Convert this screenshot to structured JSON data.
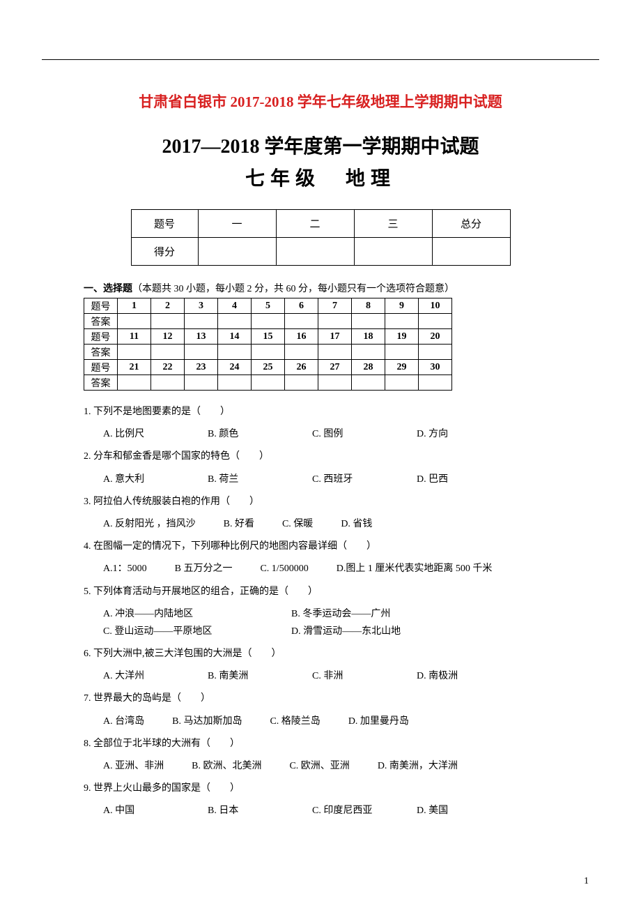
{
  "colors": {
    "title_red": "#d82020",
    "text": "#000000",
    "background": "#ffffff",
    "border": "#000000"
  },
  "title_red": "甘肃省白银市 2017-2018 学年七年级地理上学期期中试题",
  "title_main": "2017—2018 学年度第一学期期中试题",
  "subtitle": "七年级　地理",
  "score_table": {
    "row_labels": [
      "题号",
      "得分"
    ],
    "columns": [
      "一",
      "二",
      "三",
      "总分"
    ]
  },
  "section1_header_bold": "一、选择题",
  "section1_header_rest": "（本题共 30 小题，每小题 2 分，共 60 分，每小题只有一个选项符合题意）",
  "answer_grid": {
    "row_label_q": "题号",
    "row_label_a": "答案",
    "rows": [
      [
        "1",
        "2",
        "3",
        "4",
        "5",
        "6",
        "7",
        "8",
        "9",
        "10"
      ],
      [
        "11",
        "12",
        "13",
        "14",
        "15",
        "16",
        "17",
        "18",
        "19",
        "20"
      ],
      [
        "21",
        "22",
        "23",
        "24",
        "25",
        "26",
        "27",
        "28",
        "29",
        "30"
      ]
    ]
  },
  "questions": [
    {
      "num": "1.",
      "text": "下列不是地图要素的是（　　）",
      "opts": [
        "A. 比例尺",
        "B. 颜色",
        "C. 图例",
        "D. 方向"
      ],
      "layout": "opt4"
    },
    {
      "num": "2.",
      "text": "分车和郁金香是哪个国家的特色（　　）",
      "opts": [
        "A. 意大利",
        "B. 荷兰",
        "C. 西班牙",
        "D. 巴西"
      ],
      "layout": "opt4"
    },
    {
      "num": "3.",
      "text": "阿拉伯人传统服装白袍的作用（　　）",
      "opts": [
        "A. 反射阳光 ，挡风沙",
        "B. 好看",
        "C. 保暖",
        "D. 省钱"
      ],
      "layout": "opt-free"
    },
    {
      "num": "4.",
      "text": "在图幅一定的情况下，下列哪种比例尺的地图内容最详细（　　）",
      "opts": [
        "A.1：5000",
        "B 五万分之一",
        "C. 1/500000",
        "D.图上 1 厘米代表实地距离 500 千米"
      ],
      "layout": "opt-free"
    },
    {
      "num": "5.",
      "text": "下列体育活动与开展地区的组合，正确的是（　　）",
      "opts": [
        "A. 冲浪——内陆地区",
        "B. 冬季运动会——广州",
        "C. 登山运动——平原地区",
        "D. 滑雪运动——东北山地"
      ],
      "layout": "opt2"
    },
    {
      "num": "6.",
      "text": "下列大洲中,被三大洋包围的大洲是（　　）",
      "opts": [
        "A. 大洋州",
        "B. 南美洲",
        "C. 非洲",
        "D. 南极洲"
      ],
      "layout": "opt4"
    },
    {
      "num": "7.",
      "text": "世界最大的岛屿是（　　）",
      "opts": [
        "A. 台湾岛",
        "B. 马达加斯加岛",
        "C. 格陵兰岛",
        "D. 加里曼丹岛"
      ],
      "layout": "opt-free"
    },
    {
      "num": "8.",
      "text": "全部位于北半球的大洲有（　　）",
      "opts": [
        "A. 亚洲、非洲",
        "B. 欧洲、北美洲",
        "C. 欧洲、亚洲",
        "D. 南美洲，大洋洲"
      ],
      "layout": "opt-free"
    },
    {
      "num": "9.",
      "text": "世界上火山最多的国家是（　　）",
      "opts": [
        "A. 中国",
        "B. 日本",
        "C. 印度尼西亚",
        "D. 美国"
      ],
      "layout": "opt4"
    }
  ],
  "page_number": "1"
}
